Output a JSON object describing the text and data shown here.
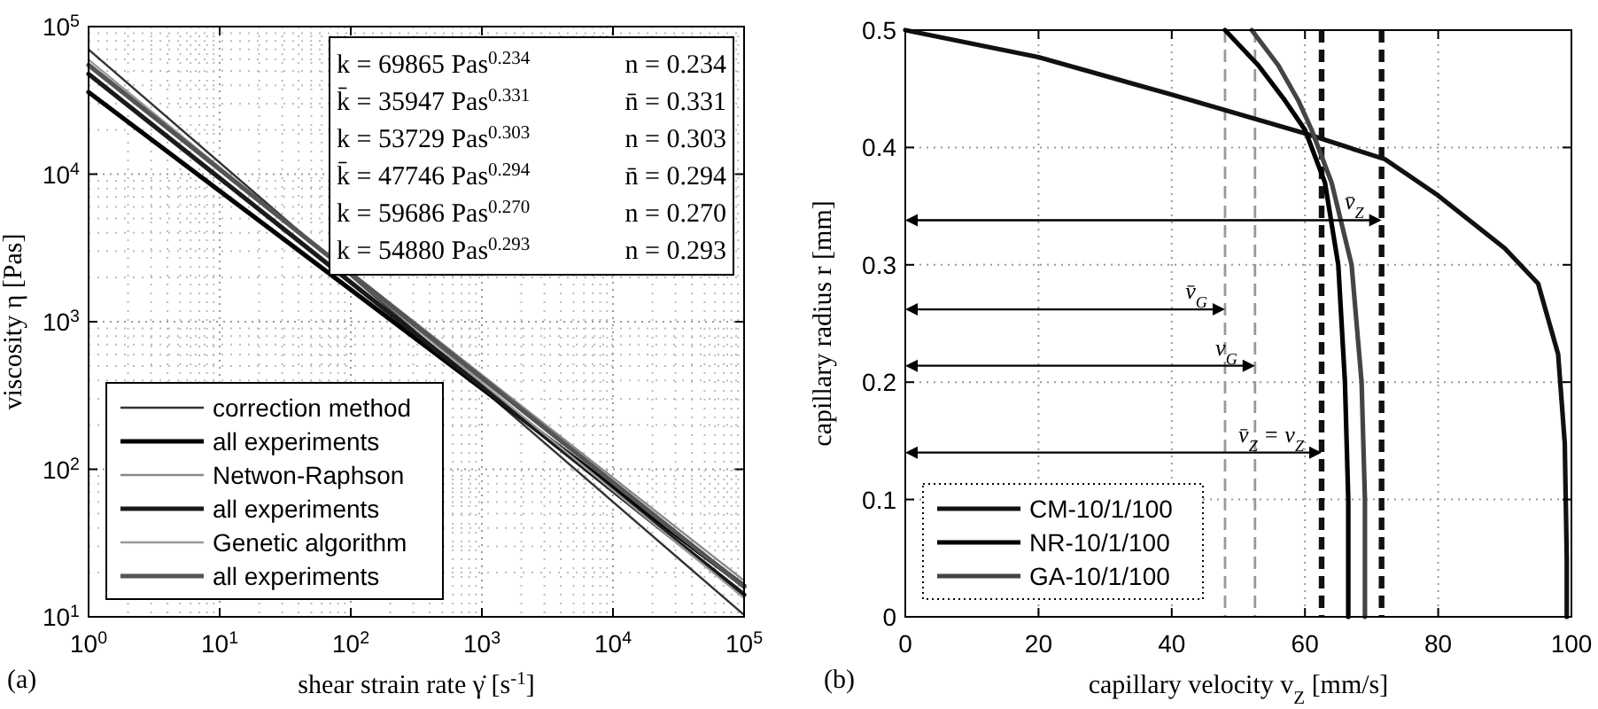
{
  "chart_data": [
    {
      "type": "line",
      "log": "xy",
      "xlabel": "shear strain rate γ̇ [s$^{-1}$]",
      "ylabel": "viscosity η [Pas]",
      "xlim": [
        1,
        100000
      ],
      "ylim": [
        10,
        100000
      ],
      "xticks": [
        {
          "value": 1,
          "label": "10$^{0}$"
        },
        {
          "value": 10,
          "label": "10$^{1}$"
        },
        {
          "value": 100,
          "label": "10$^{2}$"
        },
        {
          "value": 1000,
          "label": "10$^{3}$"
        },
        {
          "value": 10000,
          "label": "10$^{4}$"
        },
        {
          "value": 100000,
          "label": "10$^{5}$"
        }
      ],
      "yticks": [
        {
          "value": 10,
          "label": "10$^{1}$"
        },
        {
          "value": 100,
          "label": "10$^{2}$"
        },
        {
          "value": 1000,
          "label": "10$^{3}$"
        },
        {
          "value": 10000,
          "label": "10$^{4}$"
        },
        {
          "value": 100000,
          "label": "10$^{5}$"
        }
      ],
      "grid": true,
      "legend": "bottom left",
      "x": [
        1,
        100000
      ],
      "series": [
        {
          "name": "correction method",
          "color": "#333333",
          "values": [
            69865,
            10.3
          ]
        },
        {
          "name": "all experiments",
          "color": "#000000",
          "values": [
            35947,
            16.2
          ]
        },
        {
          "name": "Netwon-Raphson",
          "color": "#888888",
          "values": [
            53729,
            17.6
          ]
        },
        {
          "name": "all experiments",
          "color": "#1a1a1a",
          "values": [
            47746,
            14.1
          ]
        },
        {
          "name": "Genetic algorithm",
          "color": "#999999",
          "values": [
            59686,
            13.4
          ]
        },
        {
          "name": "all experiments",
          "color": "#555555",
          "values": [
            54880,
            16.0
          ]
        }
      ],
      "annotations": [
        "k = 69865 Pas$^{0.234}$",
        "n = 0.234",
        "k̄ = 35947 Pas$^{0.331}$",
        "n̄ = 0.331",
        "k = 53729 Pas$^{0.303}$",
        "n = 0.303",
        "k̄ = 47746 Pas$^{0.294}$",
        "n̄ = 0.294",
        "k = 59686 Pas$^{0.270}$",
        "n = 0.270",
        "k = 54880 Pas$^{0.293}$",
        "n = 0.293",
        "(a)"
      ]
    },
    {
      "type": "line",
      "xlabel": "capillary velocity v$_{Z}$ [mm/s]",
      "ylabel": "capillary radius r [mm]",
      "xlim": [
        0,
        100
      ],
      "ylim": [
        0,
        0.5
      ],
      "xticks": [
        0,
        20,
        40,
        60,
        80,
        100
      ],
      "yticks": [
        0,
        0.1,
        0.2,
        0.3,
        0.4,
        0.5
      ],
      "grid": true,
      "legend": "bottom left",
      "series": [
        {
          "name": "CM-10/1/100",
          "color": "#111111",
          "x": [
            0,
            20,
            40,
            60,
            72,
            80,
            90,
            95,
            98,
            99,
            99.3,
            99.3
          ],
          "values": [
            0.5,
            0.477,
            0.445,
            0.412,
            0.39,
            0.359,
            0.314,
            0.284,
            0.224,
            0.148,
            0.05,
            0
          ]
        },
        {
          "name": "NR-10/1/100",
          "color": "#000000",
          "x": [
            48,
            53,
            57,
            60,
            63,
            65,
            66,
            66.5,
            66.5
          ],
          "values": [
            0.5,
            0.47,
            0.44,
            0.415,
            0.37,
            0.3,
            0.2,
            0.1,
            0
          ]
        },
        {
          "name": "GA-10/1/100",
          "color": "#444444",
          "x": [
            52,
            56,
            59,
            61,
            64,
            67,
            68.5,
            69,
            69
          ],
          "values": [
            0.5,
            0.47,
            0.44,
            0.415,
            0.37,
            0.3,
            0.2,
            0.1,
            0
          ]
        }
      ],
      "ref_lines": [
        {
          "axis": "x",
          "value": 48,
          "color": "#999999",
          "line_style": "dashed"
        },
        {
          "axis": "x",
          "value": 52.5,
          "color": "#999999",
          "line_style": "dashed"
        },
        {
          "axis": "x",
          "value": 62.5,
          "color": "#111111",
          "line_style": "dashed"
        },
        {
          "axis": "x",
          "value": 71.5,
          "color": "#111111",
          "line_style": "dashed"
        }
      ],
      "annotations": [
        {
          "text": "v̄$_{Z}$",
          "x": 71.5,
          "y": 0.338
        },
        {
          "text": "v̄$_{G}$",
          "x": 48,
          "y": 0.262
        },
        {
          "text": "v$_{G}$",
          "x": 52.5,
          "y": 0.214
        },
        {
          "text": "v̄$_{Z}$ = v$_{Z}$",
          "x": 62.5,
          "y": 0.14
        },
        "(b)"
      ]
    }
  ]
}
